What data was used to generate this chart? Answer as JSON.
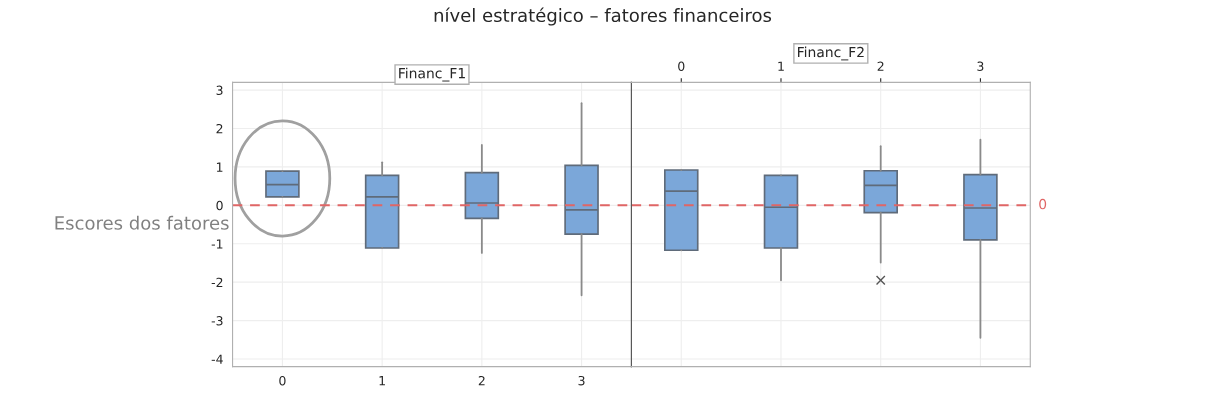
{
  "chart_data": [
    {
      "type": "box",
      "title": "Financ_F1",
      "ylabel": "Escores dos fatores",
      "annotations": [
        "nível estratégico – fatores financeiros"
      ],
      "categories": [
        "0",
        "1",
        "2",
        "3"
      ],
      "color": "#7ba7d9",
      "boxes": [
        {
          "low": 0.22,
          "q1": 0.22,
          "median": 0.54,
          "q3": 0.89,
          "high": 0.89
        },
        {
          "low": -1.11,
          "q1": -1.11,
          "median": 0.22,
          "q3": 0.78,
          "high": 1.12
        },
        {
          "low": -1.24,
          "q1": -0.34,
          "median": 0.06,
          "q3": 0.85,
          "high": 1.57
        },
        {
          "low": -2.34,
          "q1": -0.75,
          "median": -0.12,
          "q3": 1.04,
          "high": 2.66
        }
      ],
      "ylim": [
        -4.2,
        3.2
      ],
      "yticks": [
        -4,
        -3,
        -2,
        -1,
        0,
        1,
        2,
        3
      ],
      "grid": true,
      "ref_lines": [
        {
          "axis": "y",
          "value": 0,
          "color": "#e06666",
          "line_style": "dashed"
        }
      ]
    },
    {
      "type": "box",
      "title": "Financ_F2",
      "categories": [
        "0",
        "1",
        "2",
        "3"
      ],
      "color": "#7ba7d9",
      "tick_labels": "x",
      "boxes": [
        {
          "low": -1.17,
          "q1": -1.17,
          "median": 0.37,
          "q3": 0.92,
          "high": 0.92
        },
        {
          "low": -1.95,
          "q1": -1.11,
          "median": -0.05,
          "q3": 0.78,
          "high": 0.78
        },
        {
          "low": -1.49,
          "q1": -0.19,
          "median": 0.52,
          "q3": 0.9,
          "high": 1.54,
          "outliers": [
            -1.95
          ]
        },
        {
          "low": -3.45,
          "q1": -0.9,
          "median": -0.07,
          "q3": 0.8,
          "high": 1.71
        }
      ],
      "ylim": [
        -4.2,
        3.2
      ],
      "yticks": [
        -4,
        -3,
        -2,
        -1,
        0,
        1,
        2,
        3
      ],
      "grid": true,
      "ref_lines": [
        {
          "axis": "y",
          "value": 0,
          "label": "0",
          "color": "#e06666",
          "line_style": "dashed"
        }
      ]
    }
  ]
}
